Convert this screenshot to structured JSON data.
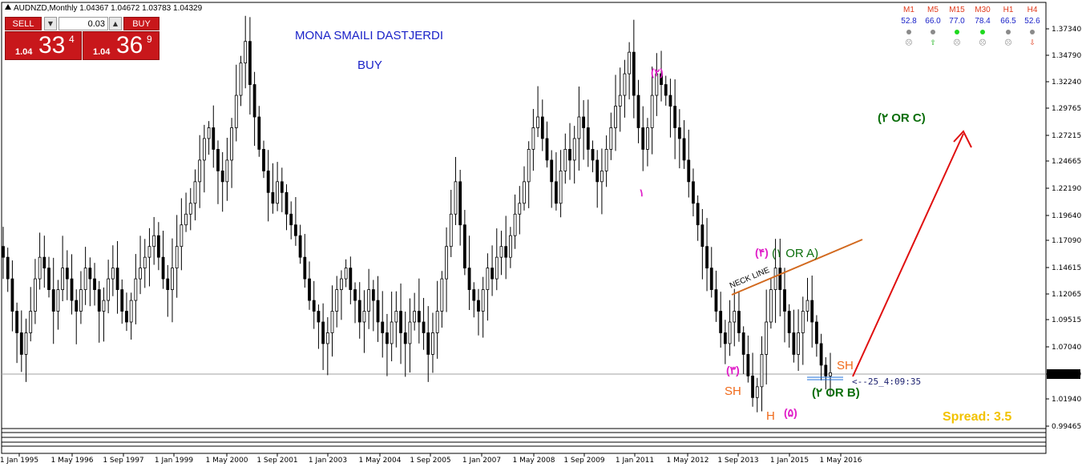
{
  "header": {
    "title": "AUDNZD,Monthly  1.04367 1.04672 1.03783 1.04329"
  },
  "trade_panel": {
    "sell_label": "SELL",
    "buy_label": "BUY",
    "lot_value": "0.03",
    "down_symbol": "▼",
    "up_symbol": "▲",
    "sell_price": {
      "prefix": "1.04",
      "big": "33",
      "sup": "4"
    },
    "buy_price": {
      "prefix": "1.04",
      "big": "36",
      "sup": "9"
    }
  },
  "annotations": {
    "author": "MONA SMAILI DASTJERDI",
    "signal": "BUY",
    "neck_line": "NECK LINE",
    "wave_top": "(۲)",
    "wave_one": "۱",
    "wave_four": "(۴)",
    "wave_one_or_a": "(۱ OR A)",
    "wave_three": "(۳)",
    "wave_five": "(۵)",
    "wave_two_or_b": "(۲ OR B)",
    "wave_target": "(۲ OR C)",
    "left_shoulder": "SH",
    "right_shoulder": "SH",
    "head": "H",
    "countdown": "<--25_4:09:35",
    "spread": "Spread:  3.5"
  },
  "indicator_table": {
    "columns": [
      {
        "name": "M1",
        "value": "52.8",
        "dot": "#8a8a8a",
        "arrow": "☹",
        "arrow_color": "#8a8a8a"
      },
      {
        "name": "M5",
        "value": "66.0",
        "dot": "#8a8a8a",
        "arrow": "⇧",
        "arrow_color": "#1db31d"
      },
      {
        "name": "M15",
        "value": "77.0",
        "dot": "#1ed81e",
        "arrow": "☹",
        "arrow_color": "#8a8a8a"
      },
      {
        "name": "M30",
        "value": "78.4",
        "dot": "#1ed81e",
        "arrow": "☹",
        "arrow_color": "#8a8a8a"
      },
      {
        "name": "H1",
        "value": "66.5",
        "dot": "#8a8a8a",
        "arrow": "☹",
        "arrow_color": "#8a8a8a"
      },
      {
        "name": "H4",
        "value": "52.6",
        "dot": "#8a8a8a",
        "arrow": "⇩",
        "arrow_color": "#e03a1c"
      }
    ]
  },
  "price_axis": {
    "labels": [
      "1.37340",
      "1.34790",
      "1.32240",
      "1.29765",
      "1.27215",
      "1.24665",
      "1.22190",
      "1.19640",
      "1.17090",
      "1.14615",
      "1.12065",
      "1.09515",
      "1.07040",
      "1.04329",
      "1.01940",
      "0.99465"
    ],
    "current_price": "1.04329"
  },
  "time_axis": {
    "labels": [
      "1 Jan 1995",
      "1 May 1996",
      "1 Sep 1997",
      "1 Jan 1999",
      "1 May 2000",
      "1 Sep 2001",
      "1 Jan 2003",
      "1 May 2004",
      "1 Sep 2005",
      "1 Jan 2007",
      "1 May 2008",
      "1 Sep 2009",
      "1 Jan 2011",
      "1 May 2012",
      "1 Sep 2013",
      "1 Jan 2015",
      "1 May 2016"
    ]
  },
  "colors": {
    "candle": "#000000",
    "neck_line": "#d2691e",
    "projection_arrow": "#e01010",
    "wave_magenta": "#e020c8",
    "wave_green": "#0b6e0b",
    "shoulder": "#f06a1a",
    "title_blue": "#1a22c8",
    "spread": "#f2c200",
    "button_red": "#c8171b"
  },
  "chart_data": {
    "type": "candlestick",
    "symbol": "AUDNZD",
    "timeframe": "Monthly",
    "ohlc_last": {
      "open": 1.04367,
      "high": 1.04672,
      "low": 1.03783,
      "close": 1.04329
    },
    "ylim": [
      0.99,
      1.38
    ],
    "y_ticks": [
      1.3734,
      1.3479,
      1.3224,
      1.29765,
      1.27215,
      1.24665,
      1.2219,
      1.1964,
      1.1709,
      1.14615,
      1.12065,
      1.09515,
      1.0704,
      1.0194,
      0.99465
    ],
    "x_ticks": [
      "1 Jan 1995",
      "1 May 1996",
      "1 Sep 1997",
      "1 Jan 1999",
      "1 May 2000",
      "1 Sep 2001",
      "1 Jan 2003",
      "1 May 2004",
      "1 Sep 2005",
      "1 Jan 2007",
      "1 May 2008",
      "1 Sep 2009",
      "1 Jan 2011",
      "1 May 2012",
      "1 Sep 2013",
      "1 Jan 2015",
      "1 May 2016"
    ],
    "closes": [
      1.15,
      1.13,
      1.1,
      1.08,
      1.06,
      1.08,
      1.1,
      1.13,
      1.15,
      1.14,
      1.12,
      1.1,
      1.12,
      1.14,
      1.13,
      1.11,
      1.1,
      1.12,
      1.14,
      1.13,
      1.12,
      1.1,
      1.11,
      1.13,
      1.14,
      1.12,
      1.1,
      1.09,
      1.11,
      1.13,
      1.14,
      1.15,
      1.16,
      1.17,
      1.15,
      1.13,
      1.12,
      1.14,
      1.16,
      1.18,
      1.19,
      1.2,
      1.22,
      1.24,
      1.26,
      1.27,
      1.25,
      1.23,
      1.22,
      1.24,
      1.27,
      1.3,
      1.33,
      1.35,
      1.31,
      1.28,
      1.25,
      1.23,
      1.21,
      1.2,
      1.22,
      1.21,
      1.19,
      1.18,
      1.17,
      1.15,
      1.13,
      1.11,
      1.1,
      1.09,
      1.07,
      1.08,
      1.1,
      1.12,
      1.13,
      1.14,
      1.12,
      1.11,
      1.09,
      1.1,
      1.12,
      1.11,
      1.09,
      1.08,
      1.07,
      1.09,
      1.1,
      1.08,
      1.07,
      1.09,
      1.1,
      1.09,
      1.08,
      1.06,
      1.08,
      1.1,
      1.13,
      1.16,
      1.19,
      1.22,
      1.18,
      1.14,
      1.12,
      1.11,
      1.1,
      1.12,
      1.14,
      1.13,
      1.15,
      1.16,
      1.15,
      1.17,
      1.19,
      1.2,
      1.22,
      1.25,
      1.27,
      1.28,
      1.26,
      1.24,
      1.22,
      1.2,
      1.23,
      1.25,
      1.24,
      1.26,
      1.28,
      1.27,
      1.25,
      1.24,
      1.22,
      1.23,
      1.25,
      1.27,
      1.29,
      1.3,
      1.32,
      1.34,
      1.3,
      1.27,
      1.25,
      1.27,
      1.3,
      1.32,
      1.31,
      1.3,
      1.29,
      1.27,
      1.26,
      1.24,
      1.22,
      1.2,
      1.18,
      1.16,
      1.14,
      1.12,
      1.1,
      1.08,
      1.07,
      1.09,
      1.1,
      1.08,
      1.06,
      1.04,
      1.02,
      1.03,
      1.06,
      1.09,
      1.12,
      1.14,
      1.12,
      1.1,
      1.08,
      1.06,
      1.08,
      1.1,
      1.11,
      1.09,
      1.07,
      1.05,
      1.04,
      1.043
    ]
  }
}
